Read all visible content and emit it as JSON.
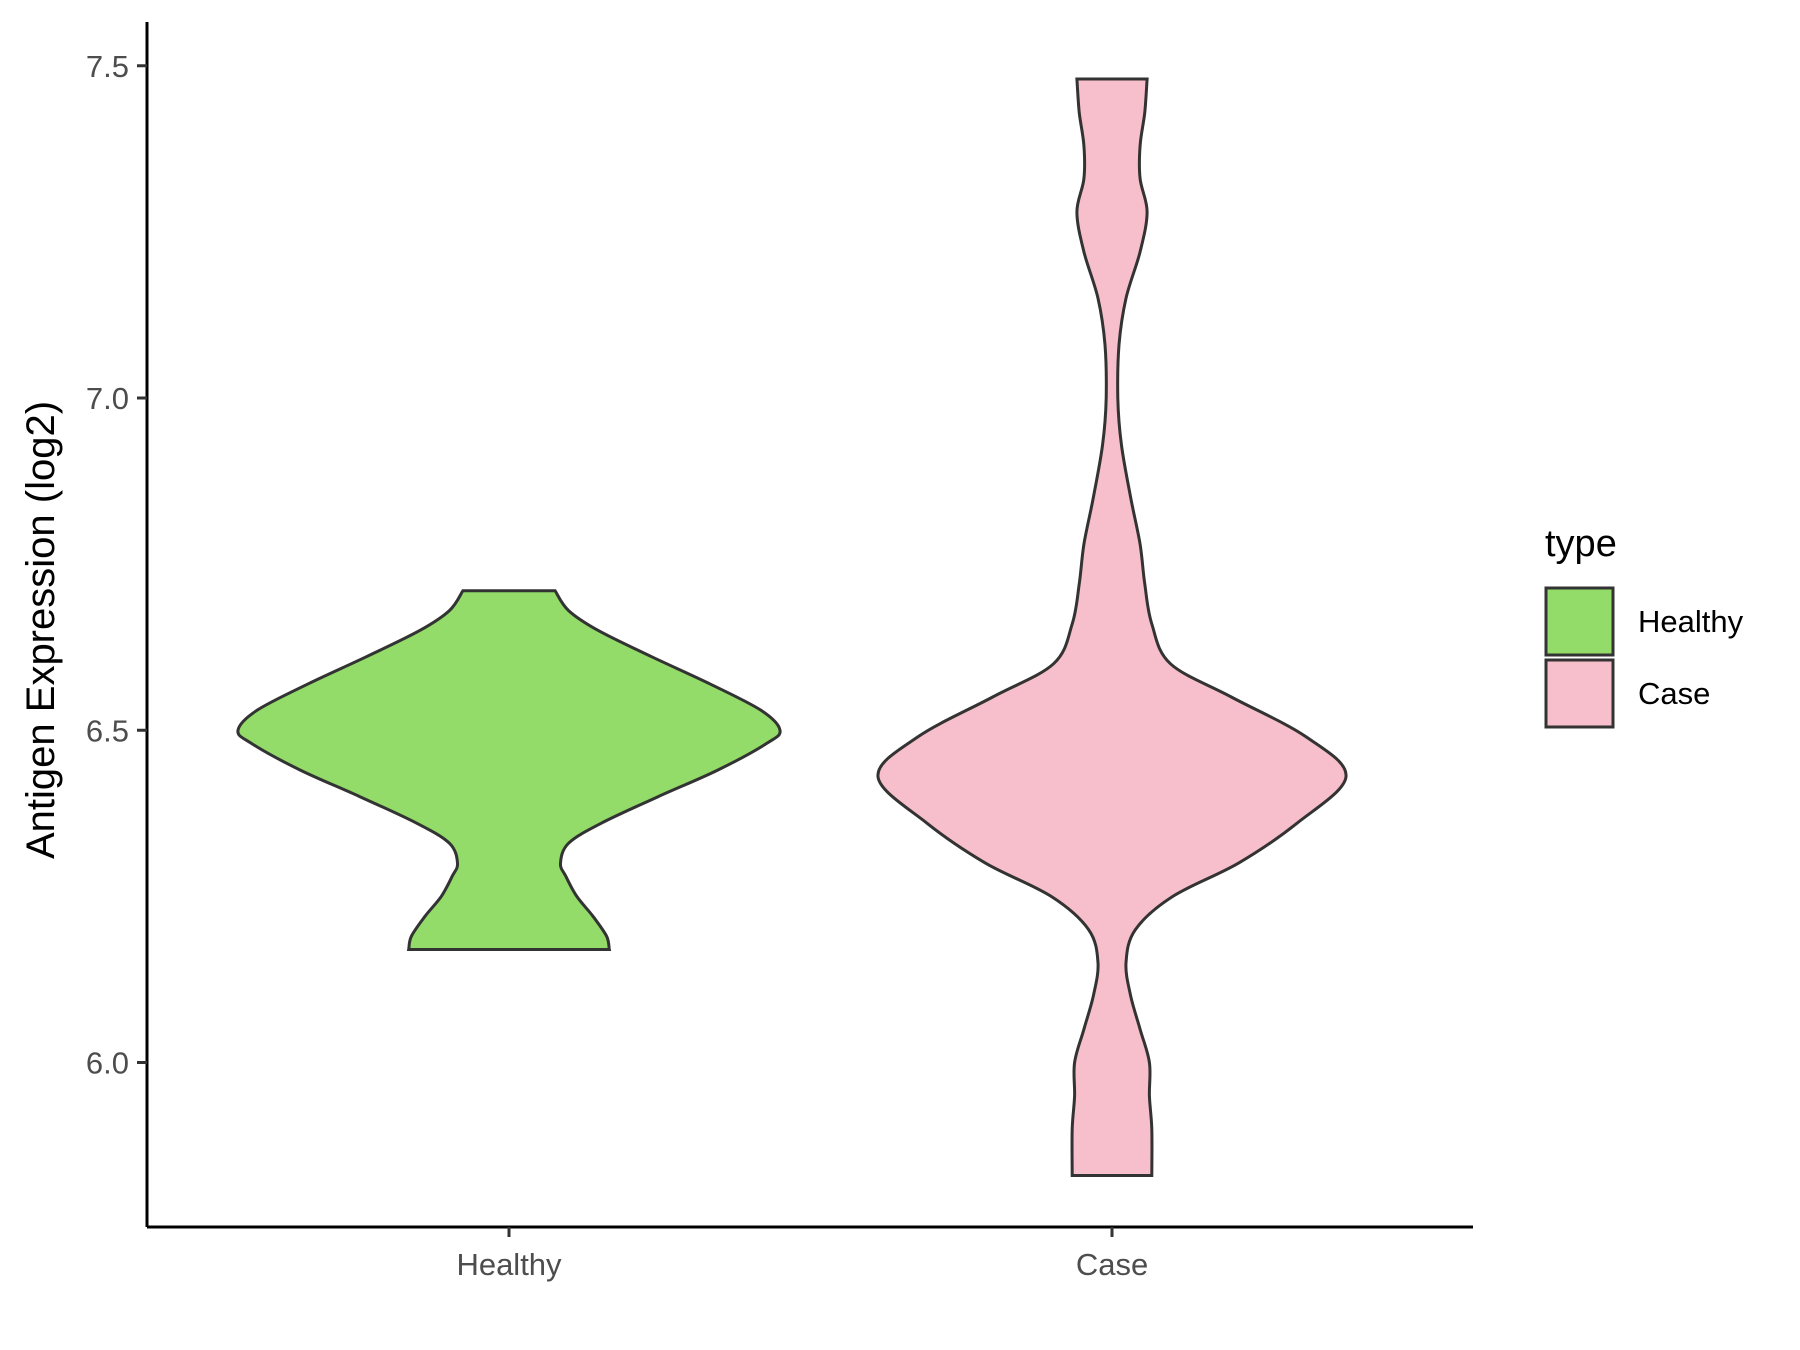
{
  "chart_data": {
    "type": "violin",
    "ylabel": "Antigen Expression (log2)",
    "xlabel": "",
    "categories": [
      "Healthy",
      "Case"
    ],
    "ylim": [
      5.82,
      7.56
    ],
    "yticks": [
      "6.0",
      "6.5",
      "7.0",
      "7.5"
    ],
    "grid": false,
    "legend": {
      "title": "type",
      "position": "right",
      "entries": [
        "Healthy",
        "Case"
      ]
    },
    "series": [
      {
        "category": "Healthy",
        "color": "#93DC6A",
        "min": 6.17,
        "max": 6.71,
        "density_profile": [
          [
            6.17,
            0.37
          ],
          [
            6.19,
            0.36
          ],
          [
            6.22,
            0.31
          ],
          [
            6.25,
            0.25
          ],
          [
            6.28,
            0.21
          ],
          [
            6.3,
            0.19
          ],
          [
            6.33,
            0.22
          ],
          [
            6.36,
            0.34
          ],
          [
            6.4,
            0.55
          ],
          [
            6.44,
            0.77
          ],
          [
            6.48,
            0.95
          ],
          [
            6.5,
            1.0
          ],
          [
            6.53,
            0.93
          ],
          [
            6.57,
            0.74
          ],
          [
            6.61,
            0.53
          ],
          [
            6.65,
            0.33
          ],
          [
            6.68,
            0.22
          ],
          [
            6.71,
            0.17
          ]
        ]
      },
      {
        "category": "Case",
        "color": "#F7BFCB",
        "min": 5.83,
        "max": 7.48,
        "density_profile": [
          [
            5.83,
            0.17
          ],
          [
            5.9,
            0.17
          ],
          [
            5.95,
            0.16
          ],
          [
            6.0,
            0.16
          ],
          [
            6.05,
            0.12
          ],
          [
            6.1,
            0.08
          ],
          [
            6.15,
            0.06
          ],
          [
            6.2,
            0.1
          ],
          [
            6.25,
            0.26
          ],
          [
            6.3,
            0.54
          ],
          [
            6.36,
            0.79
          ],
          [
            6.43,
            1.0
          ],
          [
            6.49,
            0.83
          ],
          [
            6.55,
            0.51
          ],
          [
            6.6,
            0.25
          ],
          [
            6.66,
            0.17
          ],
          [
            6.72,
            0.14
          ],
          [
            6.78,
            0.12
          ],
          [
            6.85,
            0.08
          ],
          [
            6.93,
            0.04
          ],
          [
            7.0,
            0.025
          ],
          [
            7.08,
            0.03
          ],
          [
            7.15,
            0.06
          ],
          [
            7.22,
            0.12
          ],
          [
            7.28,
            0.15
          ],
          [
            7.33,
            0.12
          ],
          [
            7.38,
            0.12
          ],
          [
            7.43,
            0.14
          ],
          [
            7.48,
            0.15
          ]
        ]
      }
    ]
  }
}
